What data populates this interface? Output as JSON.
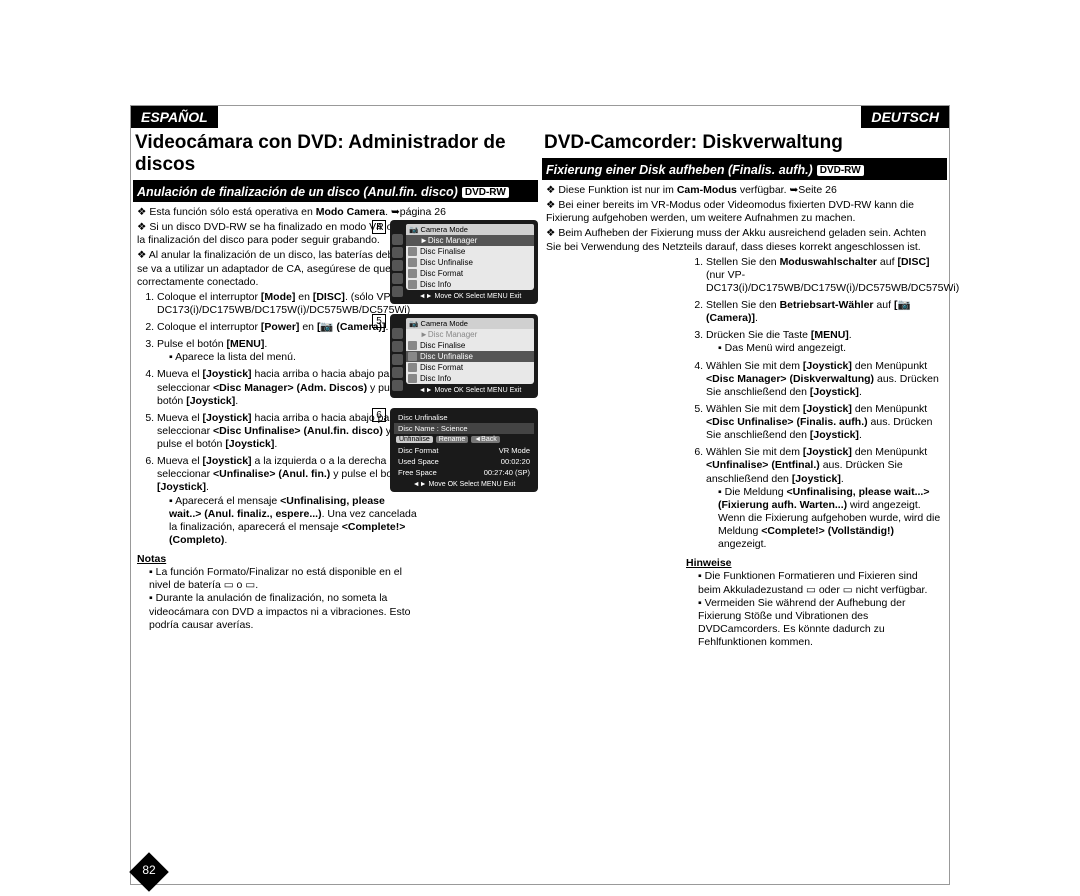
{
  "lang": {
    "es": "ESPAÑOL",
    "de": "DEUTSCH"
  },
  "es": {
    "title": "Videocámara con DVD: Administrador de discos",
    "subbar": "Anulación de finalización de un disco (Anul.fin. disco)",
    "dvdrw": "DVD-RW",
    "d1": "Esta función sólo está operativa en <b>Modo Camera</b>. <span class='arrow'>➥</span>página 26",
    "d2": "Si un disco DVD-RW se ha finalizado en modo VR o en modo Vídeo, puede anular la finalización del disco para poder seguir grabando.",
    "d3": "Al anular la finalización de un disco, las baterías deben tener energía suficiente. Si se va a utilizar un adaptador de CA, asegúrese de que el terminal esté correctamente conectado.",
    "s1": "Coloque el interruptor <b>[Mode]</b> en <b>[DISC]</b>. (sólo VP-DC173(i)/DC175WB/DC175W(i)/DC575WB/DC575Wi)",
    "s2": "Coloque el interruptor <b>[Power]</b> en <b>[📷 (Camera)]</b>.",
    "s3": "Pulse el botón <b>[MENU]</b>.",
    "s3a": "Aparece la lista del menú.",
    "s4": "Mueva el <b>[Joystick]</b> hacia arriba o hacia abajo para seleccionar <b>&lt;Disc Manager&gt; (Adm. Discos)</b> y pulse el botón <b>[Joystick]</b>.",
    "s5": "Mueva el <b>[Joystick]</b> hacia arriba o hacia abajo para seleccionar <b>&lt;Disc Unfinalise&gt; (Anul.fin. disco)</b> y pulse el botón <b>[Joystick]</b>.",
    "s6": "Mueva el <b>[Joystick]</b> a la izquierda o a la derecha para seleccionar <b>&lt;Unfinalise&gt; (Anul. fin.)</b> y pulse el botón <b>[Joystick]</b>.",
    "s6a": "Aparecerá el mensaje <b>&lt;Unfinalising, please wait..&gt; (Anul. finaliz., espere...)</b>. Una vez cancelada la finalización, aparecerá el mensaje <b>&lt;Complete!&gt; (Completo)</b>.",
    "notes_h": "Notas",
    "n1": "La función Formato/Finalizar no está disponible en el nivel de batería ▭ o ▭.",
    "n2": "Durante la anulación de finalización, no someta la videocámara con DVD a impactos ni a vibraciones. Esto podría causar averías."
  },
  "de": {
    "title": "DVD-Camcorder: Diskverwaltung",
    "subbar": "Fixierung einer Disk aufheben (Finalis. aufh.)",
    "dvdrw": "DVD-RW",
    "d1": "Diese Funktion ist nur im <b>Cam-Modus</b> verfügbar. <span class='arrow'>➥</span>Seite 26",
    "d2": "Bei einer bereits im VR-Modus oder Videomodus fixierten DVD-RW kann die Fixierung aufgehoben werden, um weitere Aufnahmen zu machen.",
    "d3": "Beim Aufheben der Fixierung muss der Akku ausreichend geladen sein. Achten Sie bei Verwendung des Netzteils darauf, dass dieses korrekt angeschlossen ist.",
    "s1": "Stellen Sie den <b>Moduswahlschalter</b> auf <b>[DISC]</b> (nur VP-DC173(i)/DC175WB/DC175W(i)/DC575WB/DC575Wi)",
    "s2": "Stellen Sie den <b>Betriebsart-Wähler</b> auf <b>[📷 (Camera)]</b>.",
    "s3": "Drücken Sie die Taste <b>[MENU]</b>.",
    "s3a": "Das Menü wird angezeigt.",
    "s4": "Wählen Sie mit dem <b>[Joystick]</b> den Menüpunkt <b>&lt;Disc Manager&gt; (Diskverwaltung)</b> aus. Drücken Sie anschließend den <b>[Joystick]</b>.",
    "s5": "Wählen Sie mit dem <b>[Joystick]</b> den Menüpunkt <b>&lt;Disc Unfinalise&gt; (Finalis. aufh.)</b> aus. Drücken Sie anschließend den <b>[Joystick]</b>.",
    "s6": "Wählen Sie mit dem <b>[Joystick]</b> den Menüpunkt <b>&lt;Unfinalise&gt; (Entfinal.)</b> aus. Drücken Sie anschließend den <b>[Joystick]</b>.",
    "s6a": "Die Meldung <b>&lt;Unfinalising, please wait...&gt; (Fixierung aufh. Warten...)</b> wird angezeigt. Wenn die Fixierung aufgehoben wurde, wird die Meldung <b>&lt;Complete!&gt; (Vollständig!)</b> angezeigt.",
    "notes_h": "Hinweise",
    "n1": "Die Funktionen Formatieren und Fixieren sind beim Akkuladezustand ▭ oder ▭ nicht verfügbar.",
    "n2": "Vermeiden Sie während der Aufhebung der Fixierung Stöße und Vibrationen des DVDCamcorders. Es könnte dadurch zu Fehlfunktionen kommen."
  },
  "fig": {
    "nums": [
      "4",
      "5",
      "6"
    ],
    "cam_mode": "Camera Mode",
    "disc_mgr": "►Disc Manager",
    "items": [
      "Disc Finalise",
      "Disc Unfinalise",
      "Disc Format",
      "Disc Info"
    ],
    "foot": "◄► Move   OK Select   MENU Exit",
    "f6_title": "Disc Unfinalise",
    "f6_name": "Disc Name : Science",
    "f6_btn1": "Unfinalise",
    "f6_btn2": "Rename",
    "f6_btn3": "◄Back",
    "f6_r1k": "Disc Format",
    "f6_r1v": "VR Mode",
    "f6_r2k": "Used Space",
    "f6_r2v": "00:02:20",
    "f6_r3k": "Free Space",
    "f6_r3v": "00:27:40 (SP)"
  },
  "page_num": "82"
}
